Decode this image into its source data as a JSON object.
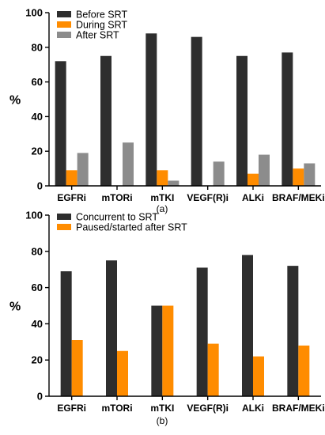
{
  "chart_data": [
    {
      "type": "bar",
      "panel_label": "(a)",
      "ylabel": "%",
      "ylim": [
        0,
        100
      ],
      "yticks": [
        0,
        20,
        40,
        60,
        80,
        100
      ],
      "legend_position": "top-left",
      "categories": [
        "EGFRi",
        "mTORi",
        "mTKI",
        "VEGF(R)i",
        "ALKi",
        "BRAF/MEKi"
      ],
      "series": [
        {
          "name": "Before SRT",
          "color": "#2e2e2e",
          "values": [
            72,
            75,
            88,
            86,
            75,
            77
          ]
        },
        {
          "name": "During SRT",
          "color": "#ff8c00",
          "values": [
            9,
            0,
            9,
            0,
            7,
            10
          ]
        },
        {
          "name": "After SRT",
          "color": "#8c8c8c",
          "values": [
            19,
            25,
            3,
            14,
            18,
            13
          ]
        }
      ]
    },
    {
      "type": "bar",
      "panel_label": "(b)",
      "ylabel": "%",
      "ylim": [
        0,
        100
      ],
      "yticks": [
        0,
        20,
        40,
        60,
        80,
        100
      ],
      "legend_position": "top-left",
      "categories": [
        "EGFRi",
        "mTORi",
        "mTKI",
        "VEGF(R)i",
        "ALKi",
        "BRAF/MEKi"
      ],
      "series": [
        {
          "name": "Concurrent to SRT",
          "color": "#2e2e2e",
          "values": [
            69,
            75,
            50,
            71,
            78,
            72
          ]
        },
        {
          "name": "Paused/started after SRT",
          "color": "#ff8c00",
          "values": [
            31,
            25,
            50,
            29,
            22,
            28
          ]
        }
      ]
    }
  ]
}
